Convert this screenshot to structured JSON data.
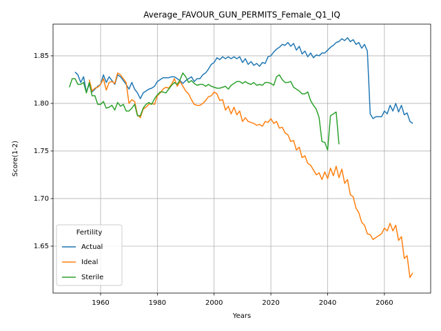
{
  "chart_data": {
    "type": "line",
    "title": "Average_FAVOUR_GUN_PERMITS_Female_Q1_IQ",
    "x_label": "Years",
    "y_label": "Score(1-2)",
    "legend_title": "Fertility",
    "legend": "lower left",
    "grid": true,
    "x": [
      1949,
      1950,
      1951,
      1952,
      1953,
      1954,
      1955,
      1956,
      1957,
      1958,
      1959,
      1960,
      1961,
      1962,
      1963,
      1964,
      1965,
      1966,
      1967,
      1968,
      1969,
      1970,
      1971,
      1972,
      1973,
      1974,
      1975,
      1976,
      1977,
      1978,
      1979,
      1980,
      1981,
      1982,
      1983,
      1984,
      1985,
      1986,
      1987,
      1988,
      1989,
      1990,
      1991,
      1992,
      1993,
      1994,
      1995,
      1996,
      1997,
      1998,
      1999,
      2000,
      2001,
      2002,
      2003,
      2004,
      2005,
      2006,
      2007,
      2008,
      2009,
      2010,
      2011,
      2012,
      2013,
      2014,
      2015,
      2016,
      2017,
      2018,
      2019,
      2020,
      2021,
      2022,
      2023,
      2024,
      2025,
      2026,
      2027,
      2028,
      2029,
      2030,
      2031,
      2032,
      2033,
      2034,
      2035,
      2036,
      2037,
      2038,
      2039,
      2040,
      2041,
      2042,
      2043,
      2044,
      2045,
      2046,
      2047,
      2048,
      2049,
      2050,
      2051,
      2052,
      2053,
      2054,
      2055,
      2056,
      2057,
      2058,
      2059,
      2060,
      2061,
      2062,
      2063,
      2064,
      2065,
      2066,
      2067,
      2068,
      2069,
      2070
    ],
    "series": [
      {
        "name": "Actual",
        "color": "#1f77b4",
        "values": [
          null,
          null,
          1.833,
          1.83,
          1.822,
          1.828,
          1.812,
          1.82,
          1.812,
          1.815,
          1.818,
          1.82,
          1.83,
          1.822,
          1.828,
          1.824,
          1.82,
          1.83,
          1.828,
          1.824,
          1.82,
          1.815,
          1.822,
          1.815,
          1.811,
          1.805,
          1.811,
          1.813,
          1.815,
          1.816,
          1.818,
          1.823,
          1.825,
          1.827,
          1.827,
          1.827,
          1.828,
          1.828,
          1.826,
          1.824,
          1.821,
          1.824,
          1.826,
          1.828,
          1.823,
          1.826,
          1.826,
          1.83,
          1.832,
          1.836,
          1.841,
          1.843,
          1.848,
          1.846,
          1.849,
          1.847,
          1.849,
          1.847,
          1.849,
          1.847,
          1.849,
          1.843,
          1.847,
          1.841,
          1.844,
          1.84,
          1.842,
          1.839,
          1.843,
          1.842,
          1.849,
          1.85,
          1.854,
          1.857,
          1.859,
          1.862,
          1.861,
          1.864,
          1.86,
          1.863,
          1.856,
          1.86,
          1.852,
          1.855,
          1.849,
          1.853,
          1.848,
          1.851,
          1.85,
          1.853,
          1.853,
          1.856,
          1.859,
          1.861,
          1.864,
          1.865,
          1.868,
          1.866,
          1.869,
          1.865,
          1.867,
          1.862,
          1.864,
          1.858,
          1.862,
          1.855,
          1.789,
          1.784,
          1.786,
          1.786,
          1.786,
          1.792,
          1.789,
          1.798,
          1.792,
          1.8,
          1.791,
          1.798,
          1.788,
          1.79,
          1.781,
          1.779
        ]
      },
      {
        "name": "Ideal",
        "color": "#ff7f0e",
        "values": [
          null,
          null,
          null,
          null,
          null,
          null,
          null,
          1.825,
          1.813,
          1.816,
          1.817,
          1.82,
          1.826,
          1.814,
          1.822,
          1.823,
          1.821,
          1.832,
          1.83,
          1.826,
          1.822,
          1.8,
          1.804,
          1.802,
          1.788,
          1.785,
          1.794,
          1.796,
          1.799,
          1.8,
          1.799,
          1.808,
          1.811,
          1.815,
          1.817,
          1.816,
          1.82,
          1.826,
          1.818,
          1.823,
          1.818,
          1.813,
          1.81,
          1.804,
          1.799,
          1.798,
          1.798,
          1.8,
          1.803,
          1.807,
          1.808,
          1.812,
          1.81,
          1.803,
          1.804,
          1.793,
          1.797,
          1.789,
          1.796,
          1.788,
          1.792,
          1.781,
          1.785,
          1.781,
          1.78,
          1.779,
          1.777,
          1.778,
          1.776,
          1.781,
          1.78,
          1.784,
          1.779,
          1.781,
          1.774,
          1.775,
          1.769,
          1.767,
          1.76,
          1.761,
          1.751,
          1.754,
          1.743,
          1.745,
          1.737,
          1.735,
          1.73,
          1.725,
          1.727,
          1.72,
          1.728,
          1.721,
          1.732,
          1.724,
          1.734,
          1.722,
          1.731,
          1.716,
          1.72,
          1.704,
          1.702,
          1.69,
          1.685,
          1.675,
          1.672,
          1.663,
          1.662,
          1.657,
          1.659,
          1.661,
          1.663,
          1.669,
          1.666,
          1.674,
          1.666,
          1.672,
          1.656,
          1.66,
          1.637,
          1.64,
          1.617,
          1.622
        ]
      },
      {
        "name": "Sterile",
        "color": "#2ca02c",
        "values": [
          1.817,
          1.826,
          1.826,
          1.82,
          1.82,
          1.822,
          1.811,
          1.822,
          1.808,
          1.808,
          1.799,
          1.799,
          1.802,
          1.795,
          1.796,
          1.798,
          1.793,
          1.801,
          1.797,
          1.799,
          1.792,
          1.792,
          1.795,
          1.799,
          1.787,
          1.787,
          1.795,
          1.799,
          1.801,
          1.799,
          1.805,
          1.809,
          1.812,
          1.812,
          1.811,
          1.815,
          1.819,
          1.822,
          1.82,
          1.825,
          1.832,
          1.828,
          1.822,
          1.824,
          1.821,
          1.819,
          1.82,
          1.82,
          1.818,
          1.82,
          1.818,
          1.817,
          1.816,
          1.816,
          1.817,
          1.818,
          1.815,
          1.819,
          1.821,
          1.823,
          1.823,
          1.821,
          1.823,
          1.821,
          1.82,
          1.822,
          1.819,
          1.82,
          1.819,
          1.822,
          1.822,
          1.821,
          1.819,
          1.828,
          1.83,
          1.825,
          1.822,
          1.822,
          1.823,
          1.817,
          1.815,
          1.813,
          1.81,
          1.81,
          1.812,
          1.803,
          1.798,
          1.794,
          1.785,
          1.76,
          1.759,
          1.751,
          1.787,
          1.789,
          1.791,
          1.757,
          null,
          null,
          null,
          null,
          null,
          null,
          null,
          null,
          null,
          null,
          null,
          null,
          null,
          null,
          null,
          null,
          null,
          null,
          null,
          null,
          null,
          null,
          null,
          null,
          null,
          null
        ]
      }
    ],
    "xlim": [
      1943.25,
      2076.3
    ],
    "xticks": [
      1960,
      1980,
      2000,
      2020,
      2040,
      2060
    ],
    "ylim": [
      1.6007,
      1.8833
    ],
    "yticks": [
      1.65,
      {
        "value": 1.7,
        "label": "1.70"
      },
      1.75,
      {
        "value": 1.8,
        "label": "1.80"
      },
      1.85
    ]
  }
}
